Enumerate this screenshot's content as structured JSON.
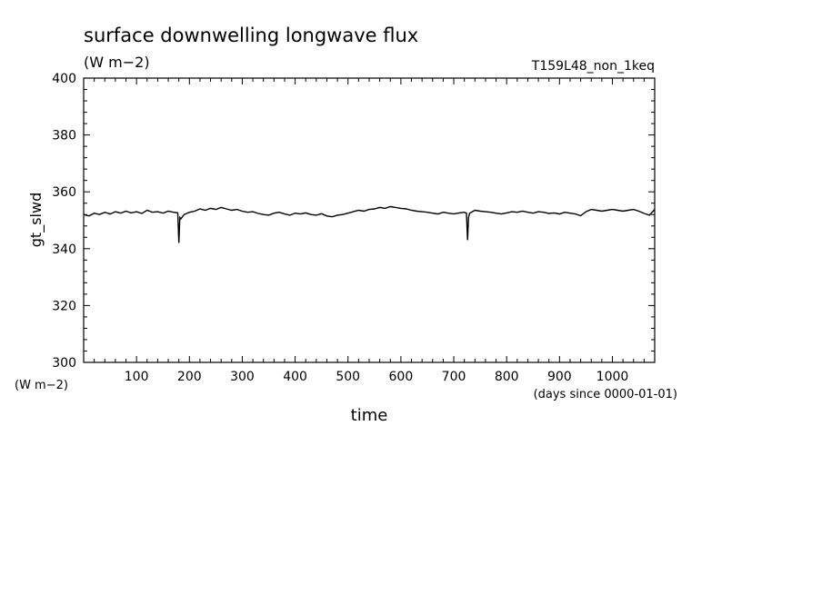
{
  "chart_data": {
    "type": "line",
    "title": "surface downwelling longwave flux",
    "subtitle": "(W m−2)",
    "run_label": "T159L48_non_1keq",
    "xlabel": "time",
    "x_units": "(days since 0000-01-01)",
    "ylabel": "gt_slwd",
    "y_units": "(W m−2)",
    "xlim": [
      0,
      1080
    ],
    "ylim": [
      300,
      400
    ],
    "x_ticks": [
      100,
      200,
      300,
      400,
      500,
      600,
      700,
      800,
      900,
      1000
    ],
    "y_ticks": [
      300,
      320,
      340,
      360,
      380,
      400
    ],
    "grid": false,
    "series": [
      {
        "color": "#000000",
        "x": [
          0,
          10,
          20,
          30,
          40,
          50,
          60,
          70,
          80,
          90,
          100,
          110,
          120,
          130,
          140,
          150,
          160,
          170,
          178,
          180,
          182,
          184,
          190,
          200,
          210,
          220,
          230,
          240,
          250,
          260,
          270,
          280,
          290,
          300,
          310,
          320,
          330,
          340,
          350,
          360,
          370,
          380,
          390,
          400,
          410,
          420,
          430,
          440,
          450,
          460,
          470,
          480,
          490,
          500,
          510,
          520,
          530,
          540,
          550,
          560,
          570,
          580,
          590,
          600,
          610,
          620,
          630,
          640,
          650,
          660,
          670,
          680,
          690,
          700,
          710,
          720,
          724,
          726,
          728,
          730,
          740,
          750,
          760,
          770,
          780,
          790,
          800,
          810,
          820,
          830,
          840,
          850,
          860,
          870,
          880,
          890,
          900,
          910,
          920,
          930,
          940,
          950,
          960,
          970,
          980,
          990,
          1000,
          1010,
          1020,
          1030,
          1040,
          1050,
          1060,
          1070,
          1080
        ],
        "y": [
          352,
          351.5,
          352.5,
          352,
          352.8,
          352.2,
          353,
          352.5,
          353.2,
          352.6,
          353,
          352.4,
          353.5,
          352.8,
          353,
          352.5,
          353.2,
          352.8,
          352.6,
          342,
          351,
          350.5,
          352,
          352.8,
          353.2,
          354,
          353.5,
          354.2,
          353.8,
          354.5,
          354,
          353.5,
          353.8,
          353.2,
          352.8,
          353,
          352.4,
          352,
          351.8,
          352.5,
          352.8,
          352.2,
          351.8,
          352.5,
          352.2,
          352.6,
          352,
          351.8,
          352.3,
          351.5,
          351.2,
          351.8,
          352,
          352.5,
          353,
          353.5,
          353.2,
          353.8,
          354,
          354.5,
          354.2,
          354.8,
          354.5,
          354.2,
          354,
          353.5,
          353.2,
          353,
          352.8,
          352.5,
          352.2,
          352.8,
          352.5,
          352.2,
          352.6,
          352.8,
          352.5,
          343,
          351,
          352.5,
          353.5,
          353.2,
          353,
          352.8,
          352.5,
          352.2,
          352.6,
          353,
          352.8,
          353.2,
          352.8,
          352.5,
          353,
          352.8,
          352.4,
          352.6,
          352.2,
          352.8,
          352.5,
          352.2,
          351.6,
          353,
          353.8,
          353.5,
          353.2,
          353.5,
          353.8,
          353.5,
          353.2,
          353.5,
          353.8,
          353.2,
          352.4,
          351.8,
          353.8
        ]
      }
    ]
  }
}
